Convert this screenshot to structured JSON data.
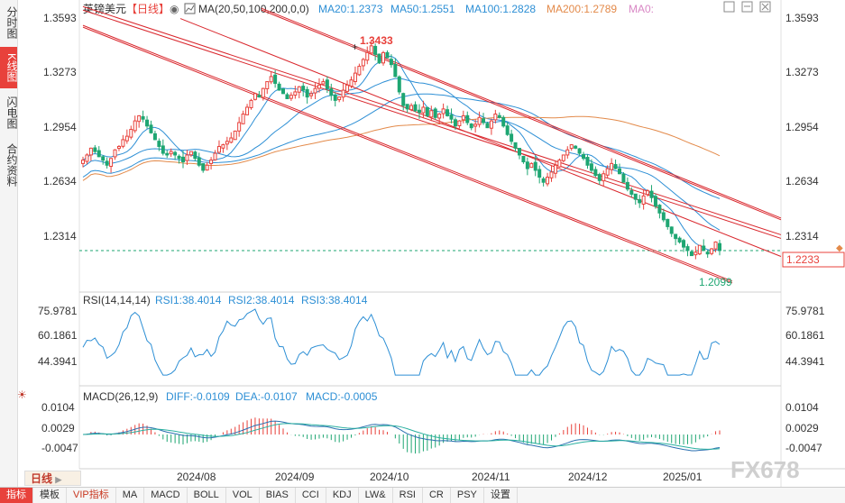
{
  "sidebar": {
    "tabs": [
      {
        "label": "分时图",
        "active": false
      },
      {
        "label": "K线图",
        "active": true
      },
      {
        "label": "闪电图",
        "active": false
      },
      {
        "label": "合约资料",
        "active": false
      }
    ]
  },
  "header": {
    "symbol": "英镑美元",
    "period": "【日线】",
    "ma_label": "MA(20,50,100,200,0,0)",
    "ma_values": [
      {
        "text": "MA20:1.2373",
        "color": "#2d8fd5"
      },
      {
        "text": "MA50:1.2551",
        "color": "#2d8fd5"
      },
      {
        "text": "MA100:1.2828",
        "color": "#2d8fd5"
      },
      {
        "text": "MA200:1.2789",
        "color": "#e38a4a"
      },
      {
        "text": "MA0:",
        "color": "#d987c5"
      }
    ]
  },
  "price_axis": {
    "ticks": [
      "1.3593",
      "1.3273",
      "1.2954",
      "1.2634",
      "1.2314"
    ],
    "current_price": "1.2233"
  },
  "annotations": {
    "high": "1.3433",
    "low": "1.2099"
  },
  "rsi_panel": {
    "label": "RSI(14,14,14)",
    "values": [
      "RSI1:38.4014",
      "RSI2:38.4014",
      "RSI3:38.4014"
    ],
    "ticks": [
      "75.9781",
      "60.1861",
      "44.3941"
    ]
  },
  "macd_panel": {
    "label": "MACD(26,12,9)",
    "values": [
      "DIFF:-0.0109",
      "DEA:-0.0107",
      "MACD:-0.0005"
    ],
    "ticks": [
      "0.0104",
      "0.0029",
      "-0.0047"
    ]
  },
  "time_axis": [
    "2024/08",
    "2024/09",
    "2024/10",
    "2024/11",
    "2024/12",
    "2025/01"
  ],
  "period_button": "日线",
  "watermark": "FX678",
  "toolbar": [
    "指标",
    "模板",
    "VIP指标",
    "MA",
    "MACD",
    "BOLL",
    "VOL",
    "BIAS",
    "CCI",
    "KDJ",
    "LW&",
    "RSI",
    "CR",
    "PSY",
    "设置"
  ],
  "colors": {
    "up": "#e8413b",
    "down": "#1ea672",
    "channel": "#d9262c",
    "ma_blue": "#2d8fd5",
    "ma_orange": "#e38a4a"
  },
  "chart_data": {
    "type": "candlestick",
    "title": "英镑美元 日线",
    "ylim": [
      1.2004,
      1.3664
    ],
    "x_labels": [
      "2024/08",
      "2024/09",
      "2024/10",
      "2024/11",
      "2024/12",
      "2025/01"
    ],
    "close_series": [
      1.276,
      1.279,
      1.283,
      1.281,
      1.278,
      1.276,
      1.273,
      1.277,
      1.282,
      1.284,
      1.288,
      1.29,
      1.294,
      1.299,
      1.302,
      1.3,
      1.296,
      1.292,
      1.288,
      1.284,
      1.28,
      1.279,
      1.281,
      1.279,
      1.277,
      1.275,
      1.279,
      1.281,
      1.277,
      1.273,
      1.27,
      1.273,
      1.276,
      1.28,
      1.284,
      1.285,
      1.287,
      1.289,
      1.293,
      1.298,
      1.303,
      1.307,
      1.311,
      1.315,
      1.313,
      1.318,
      1.322,
      1.325,
      1.321,
      1.317,
      1.315,
      1.312,
      1.314,
      1.316,
      1.319,
      1.317,
      1.313,
      1.315,
      1.318,
      1.32,
      1.322,
      1.318,
      1.314,
      1.311,
      1.313,
      1.317,
      1.32,
      1.323,
      1.327,
      1.331,
      1.335,
      1.339,
      1.343,
      1.338,
      1.333,
      1.339,
      1.336,
      1.332,
      1.325,
      1.316,
      1.308,
      1.306,
      1.308,
      1.305,
      1.304,
      1.307,
      1.302,
      1.305,
      1.301,
      1.303,
      1.306,
      1.302,
      1.3,
      1.296,
      1.299,
      1.302,
      1.298,
      1.295,
      1.297,
      1.301,
      1.298,
      1.295,
      1.299,
      1.303,
      1.301,
      1.296,
      1.291,
      1.287,
      1.283,
      1.279,
      1.275,
      1.271,
      1.274,
      1.27,
      1.266,
      1.263,
      1.266,
      1.269,
      1.273,
      1.276,
      1.279,
      1.282,
      1.285,
      1.283,
      1.28,
      1.277,
      1.273,
      1.27,
      1.267,
      1.264,
      1.268,
      1.271,
      1.274,
      1.271,
      1.268,
      1.263,
      1.259,
      1.256,
      1.253,
      1.251,
      1.255,
      1.258,
      1.254,
      1.249,
      1.245,
      1.241,
      1.237,
      1.233,
      1.23,
      1.228,
      1.225,
      1.223,
      1.22,
      1.222,
      1.226,
      1.223,
      1.221,
      1.224,
      1.228,
      1.223
    ],
    "ma_series": [
      {
        "name": "MA20",
        "last": 1.2373
      },
      {
        "name": "MA50",
        "last": 1.2551
      },
      {
        "name": "MA100",
        "last": 1.2828
      },
      {
        "name": "MA200",
        "last": 1.2789
      }
    ],
    "channel": {
      "upper_start": 1.365,
      "upper_end": 1.228,
      "lower_start": 1.355,
      "lower_end": 1.205
    },
    "high": 1.3433,
    "low": 1.2099,
    "last_price": 1.2233
  }
}
